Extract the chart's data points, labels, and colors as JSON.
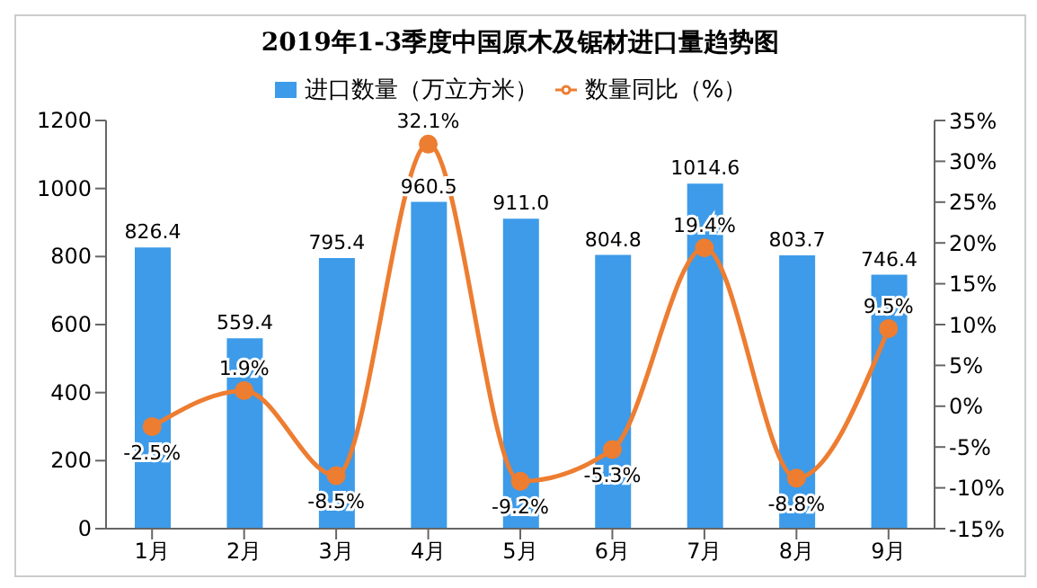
{
  "chart_data": {
    "type": "bar",
    "title": "2019年1-3季度中国原木及锯材进口量趋势图",
    "categories": [
      "1月",
      "2月",
      "3月",
      "4月",
      "5月",
      "6月",
      "7月",
      "8月",
      "9月"
    ],
    "series": [
      {
        "name": "进口数量（万立方米）",
        "color": "#3d9be9",
        "values": [
          826.4,
          559.4,
          795.4,
          960.5,
          911.0,
          804.8,
          1014.6,
          803.7,
          746.4
        ],
        "value_labels": [
          "826.4",
          "559.4",
          "795.4",
          "960.5",
          "911.0",
          "804.8",
          "1014.6",
          "803.7",
          "746.4"
        ]
      },
      {
        "name": "数量同比（%）",
        "type": "line",
        "axis": "y2",
        "color": "#ed7d31",
        "marker": "circle",
        "values": [
          -2.5,
          1.9,
          -8.5,
          32.1,
          -9.2,
          -5.3,
          19.4,
          -8.8,
          9.5
        ],
        "value_labels": [
          "-2.5%",
          "1.9%",
          "-8.5%",
          "32.1%",
          "-9.2%",
          "-5.3%",
          "19.4%",
          "-8.8%",
          "9.5%"
        ]
      }
    ],
    "ylim": [
      0,
      1200
    ],
    "yticks": [
      0,
      200,
      400,
      600,
      800,
      1000,
      1200
    ],
    "y2lim": [
      -15,
      35
    ],
    "y2ticks": [
      {
        "value": -15,
        "label": "-15%"
      },
      {
        "value": -10,
        "label": "-10%"
      },
      {
        "value": -5,
        "label": "-5%"
      },
      {
        "value": 0,
        "label": "0%"
      },
      {
        "value": 5,
        "label": "5%"
      },
      {
        "value": 10,
        "label": "10%"
      },
      {
        "value": 15,
        "label": "15%"
      },
      {
        "value": 20,
        "label": "20%"
      },
      {
        "value": 25,
        "label": "25%"
      },
      {
        "value": 30,
        "label": "30%"
      },
      {
        "value": 35,
        "label": "35%"
      }
    ],
    "grid": false,
    "legend": "top"
  }
}
